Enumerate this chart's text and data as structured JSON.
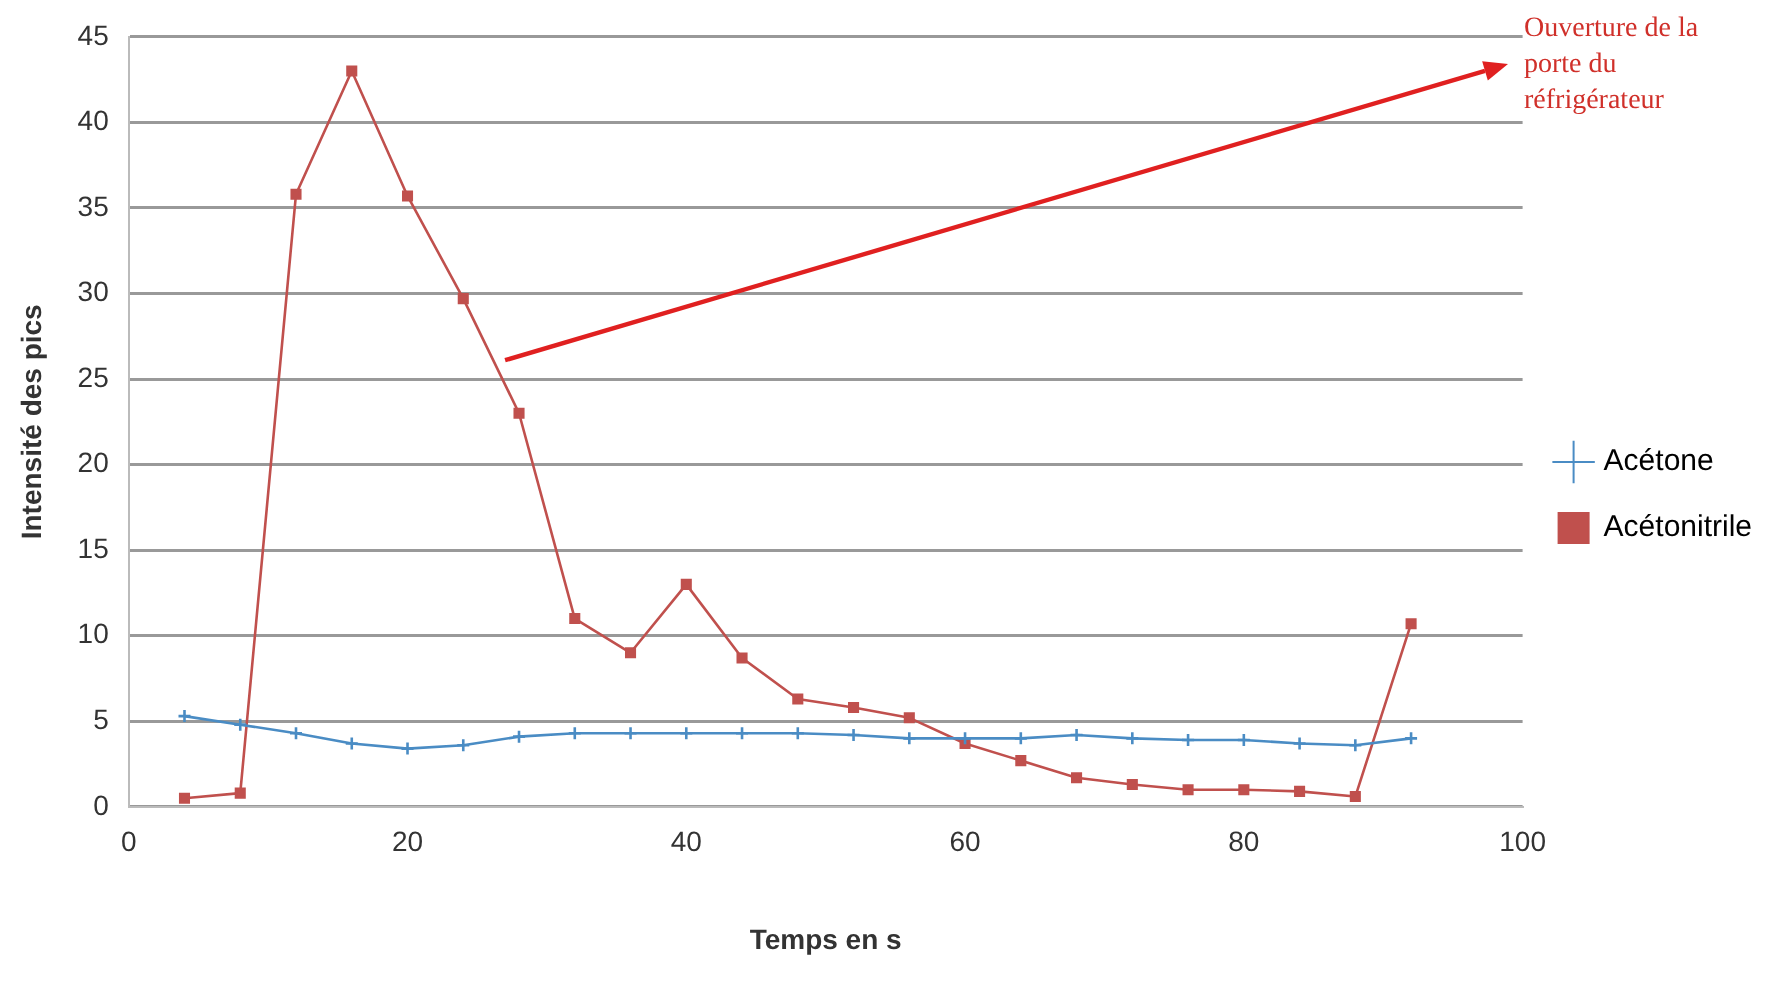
{
  "chart_data": {
    "type": "line",
    "xlabel": "Temps en s",
    "ylabel": "Intensité des pics",
    "x": [
      4,
      8,
      12,
      16,
      20,
      24,
      28,
      32,
      36,
      40,
      44,
      48,
      52,
      56,
      60,
      64,
      68,
      72,
      76,
      80,
      84,
      88,
      92
    ],
    "series": [
      {
        "name": "Acétone",
        "color": "#4a8cc4",
        "marker": "cross",
        "values": [
          5.3,
          4.8,
          4.3,
          3.7,
          3.4,
          3.6,
          4.1,
          4.3,
          4.3,
          4.3,
          4.3,
          4.3,
          4.2,
          4.0,
          4.0,
          4.0,
          4.2,
          4.0,
          3.9,
          3.9,
          3.7,
          3.6,
          4.0
        ]
      },
      {
        "name": "Acétonitrile",
        "color": "#c0504d",
        "marker": "square",
        "values": [
          0.5,
          0.8,
          35.8,
          43,
          35.7,
          29.7,
          23,
          11,
          9,
          13,
          8.7,
          6.3,
          5.8,
          5.2,
          3.7,
          2.7,
          1.7,
          1.3,
          1.0,
          1.0,
          0.9,
          0.6,
          10.7
        ]
      }
    ],
    "xlim": [
      0,
      100
    ],
    "xticks": [
      0,
      20,
      40,
      60,
      80,
      100
    ],
    "ylim": [
      0,
      45
    ],
    "yticks": [
      0,
      5,
      10,
      15,
      20,
      25,
      30,
      35,
      40,
      45
    ],
    "grid": "y",
    "legend": "right",
    "annotations": [
      "Ouverture de la porte du réfrigérateur"
    ]
  }
}
